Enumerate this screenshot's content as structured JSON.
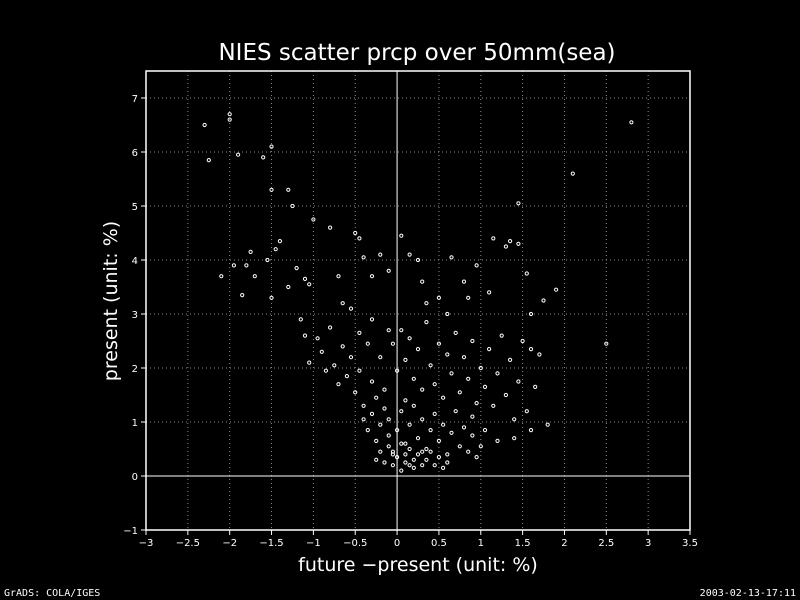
{
  "chart_data": {
    "type": "scatter",
    "title": "NIES scatter prcp over 50mm(sea)",
    "xlabel": "future −present (unit: %)",
    "ylabel": "present (unit: %)",
    "xlim": [
      -3,
      3.5
    ],
    "ylim": [
      -1,
      7.5
    ],
    "xticks": [
      -3,
      -2.5,
      -2,
      -1.5,
      -1,
      -0.5,
      0,
      0.5,
      1,
      1.5,
      2,
      2.5,
      3,
      3.5
    ],
    "yticks": [
      -1,
      0,
      1,
      2,
      3,
      4,
      5,
      6,
      7
    ],
    "xtick_labels": [
      "−3",
      "−2.5",
      "−2",
      "−1.5",
      "−1",
      "−0.5",
      "0",
      "0.5",
      "1",
      "1.5",
      "2",
      "2.5",
      "3",
      "3.5"
    ],
    "ytick_labels": [
      "−1",
      "0",
      "1",
      "2",
      "3",
      "4",
      "5",
      "6",
      "7"
    ],
    "grid": true,
    "zero_lines": true,
    "colors": {
      "background": "#000000",
      "points": "#ffffff",
      "grid": "#8c8c8c"
    },
    "points": [
      [
        -2.3,
        6.5
      ],
      [
        -2.25,
        5.85
      ],
      [
        -2.0,
        6.7
      ],
      [
        -2.0,
        6.6
      ],
      [
        -1.9,
        5.95
      ],
      [
        -1.6,
        5.9
      ],
      [
        -1.5,
        6.1
      ],
      [
        -1.5,
        5.3
      ],
      [
        -1.3,
        5.3
      ],
      [
        -1.25,
        5.0
      ],
      [
        -2.1,
        3.7
      ],
      [
        -1.95,
        3.9
      ],
      [
        -1.8,
        3.9
      ],
      [
        -1.85,
        3.35
      ],
      [
        -1.7,
        3.7
      ],
      [
        -1.75,
        4.15
      ],
      [
        -1.55,
        4.0
      ],
      [
        -1.45,
        4.2
      ],
      [
        -1.4,
        4.35
      ],
      [
        -1.5,
        3.3
      ],
      [
        -1.3,
        3.5
      ],
      [
        -1.2,
        3.85
      ],
      [
        -1.1,
        3.65
      ],
      [
        -1.05,
        3.55
      ],
      [
        -1.0,
        4.75
      ],
      [
        -0.8,
        4.6
      ],
      [
        -0.7,
        3.7
      ],
      [
        -0.65,
        3.2
      ],
      [
        -0.55,
        3.1
      ],
      [
        -0.5,
        4.5
      ],
      [
        -0.45,
        4.4
      ],
      [
        -0.4,
        4.05
      ],
      [
        -0.3,
        3.7
      ],
      [
        -0.2,
        4.1
      ],
      [
        -0.1,
        3.8
      ],
      [
        0.05,
        4.45
      ],
      [
        0.15,
        4.1
      ],
      [
        0.25,
        4.0
      ],
      [
        0.3,
        3.6
      ],
      [
        0.35,
        3.2
      ],
      [
        0.5,
        3.3
      ],
      [
        0.6,
        3.0
      ],
      [
        0.65,
        4.05
      ],
      [
        0.8,
        3.6
      ],
      [
        0.85,
        3.3
      ],
      [
        0.95,
        3.9
      ],
      [
        1.1,
        3.4
      ],
      [
        1.15,
        4.4
      ],
      [
        1.3,
        4.25
      ],
      [
        1.35,
        4.35
      ],
      [
        1.45,
        4.3
      ],
      [
        1.45,
        5.05
      ],
      [
        1.55,
        3.75
      ],
      [
        1.6,
        3.0
      ],
      [
        1.75,
        3.25
      ],
      [
        1.9,
        3.45
      ],
      [
        2.1,
        5.6
      ],
      [
        2.5,
        2.45
      ],
      [
        2.8,
        6.55
      ],
      [
        -1.15,
        2.9
      ],
      [
        -1.1,
        2.6
      ],
      [
        -1.05,
        2.1
      ],
      [
        -0.95,
        2.55
      ],
      [
        -0.9,
        2.3
      ],
      [
        -0.85,
        1.95
      ],
      [
        -0.8,
        2.75
      ],
      [
        -0.75,
        2.05
      ],
      [
        -0.7,
        1.7
      ],
      [
        -0.65,
        2.4
      ],
      [
        -0.6,
        1.85
      ],
      [
        -0.55,
        2.2
      ],
      [
        -0.5,
        1.55
      ],
      [
        -0.45,
        2.65
      ],
      [
        -0.45,
        1.95
      ],
      [
        -0.4,
        1.3
      ],
      [
        -0.35,
        2.45
      ],
      [
        -0.3,
        1.75
      ],
      [
        -0.3,
        2.9
      ],
      [
        -0.25,
        1.45
      ],
      [
        -0.2,
        2.2
      ],
      [
        -0.15,
        1.6
      ],
      [
        -0.1,
        2.7
      ],
      [
        -0.05,
        2.45
      ],
      [
        0.0,
        1.95
      ],
      [
        0.05,
        2.7
      ],
      [
        0.1,
        2.15
      ],
      [
        0.1,
        1.4
      ],
      [
        0.15,
        2.55
      ],
      [
        0.2,
        1.8
      ],
      [
        0.25,
        2.35
      ],
      [
        0.3,
        1.6
      ],
      [
        0.35,
        2.85
      ],
      [
        0.4,
        2.05
      ],
      [
        0.45,
        1.7
      ],
      [
        0.5,
        2.45
      ],
      [
        0.55,
        1.45
      ],
      [
        0.6,
        2.25
      ],
      [
        0.65,
        1.9
      ],
      [
        0.7,
        2.65
      ],
      [
        0.75,
        1.55
      ],
      [
        0.8,
        2.2
      ],
      [
        0.85,
        1.8
      ],
      [
        0.9,
        2.5
      ],
      [
        0.95,
        1.35
      ],
      [
        1.0,
        2.0
      ],
      [
        1.05,
        1.65
      ],
      [
        1.1,
        2.35
      ],
      [
        1.15,
        1.3
      ],
      [
        1.2,
        1.9
      ],
      [
        1.25,
        2.6
      ],
      [
        1.3,
        1.5
      ],
      [
        1.35,
        2.15
      ],
      [
        1.4,
        1.05
      ],
      [
        1.45,
        1.75
      ],
      [
        1.5,
        2.5
      ],
      [
        1.55,
        1.2
      ],
      [
        1.6,
        2.35
      ],
      [
        1.65,
        1.65
      ],
      [
        1.7,
        2.25
      ],
      [
        1.8,
        0.95
      ],
      [
        1.6,
        0.85
      ],
      [
        1.4,
        0.7
      ],
      [
        1.2,
        0.65
      ],
      [
        1.0,
        0.55
      ],
      [
        0.9,
        1.1
      ],
      [
        -0.4,
        1.05
      ],
      [
        -0.35,
        0.85
      ],
      [
        -0.3,
        1.15
      ],
      [
        -0.25,
        0.65
      ],
      [
        -0.2,
        0.95
      ],
      [
        -0.15,
        1.25
      ],
      [
        -0.1,
        0.75
      ],
      [
        -0.1,
        1.05
      ],
      [
        -0.05,
        0.45
      ],
      [
        0.0,
        0.85
      ],
      [
        0.05,
        1.2
      ],
      [
        0.1,
        0.6
      ],
      [
        0.15,
        0.95
      ],
      [
        0.2,
        1.3
      ],
      [
        0.25,
        0.7
      ],
      [
        0.3,
        1.05
      ],
      [
        0.35,
        0.5
      ],
      [
        0.4,
        0.85
      ],
      [
        0.45,
        1.15
      ],
      [
        0.5,
        0.65
      ],
      [
        0.55,
        0.95
      ],
      [
        0.6,
        0.4
      ],
      [
        0.65,
        0.8
      ],
      [
        0.7,
        1.2
      ],
      [
        0.75,
        0.55
      ],
      [
        0.8,
        0.9
      ],
      [
        0.85,
        0.45
      ],
      [
        0.9,
        0.75
      ],
      [
        0.95,
        0.35
      ],
      [
        1.05,
        0.85
      ],
      [
        -0.25,
        0.3
      ],
      [
        -0.2,
        0.45
      ],
      [
        -0.15,
        0.25
      ],
      [
        -0.1,
        0.55
      ],
      [
        -0.05,
        0.2
      ],
      [
        0.0,
        0.35
      ],
      [
        0.05,
        0.6
      ],
      [
        0.1,
        0.25
      ],
      [
        0.15,
        0.5
      ],
      [
        0.2,
        0.15
      ],
      [
        0.25,
        0.4
      ],
      [
        0.3,
        0.2
      ],
      [
        0.35,
        0.3
      ],
      [
        0.4,
        0.45
      ],
      [
        0.45,
        0.2
      ],
      [
        0.5,
        0.35
      ],
      [
        0.55,
        0.15
      ],
      [
        0.6,
        0.25
      ],
      [
        0.05,
        0.1
      ],
      [
        0.1,
        0.4
      ],
      [
        -0.05,
        0.4
      ],
      [
        0.2,
        0.3
      ],
      [
        0.15,
        0.2
      ],
      [
        0.3,
        0.45
      ]
    ]
  },
  "footer": {
    "left": "GrADS: COLA/IGES",
    "right": "2003-02-13-17:11"
  }
}
